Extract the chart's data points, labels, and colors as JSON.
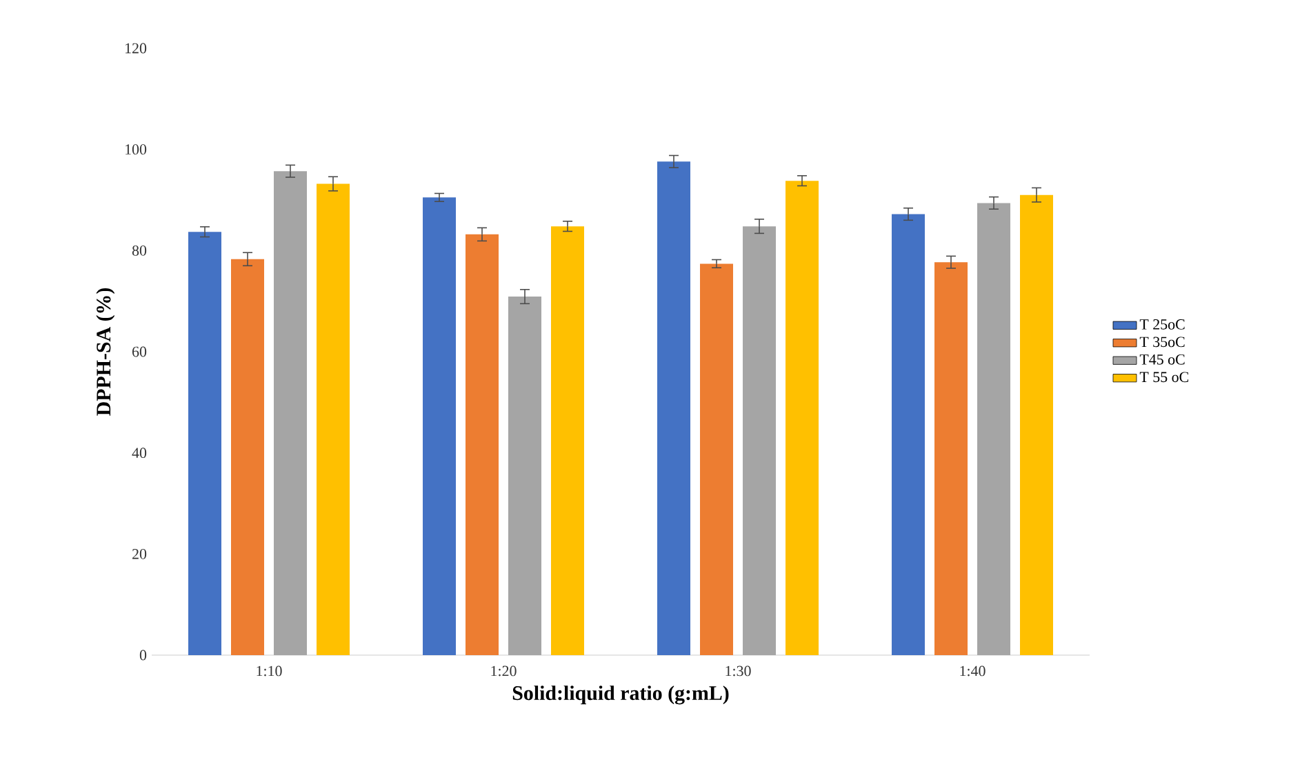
{
  "chart_data": {
    "type": "bar",
    "xlabel": "Solid:liquid ratio (g:mL)",
    "ylabel": "DPPH-SA (%)",
    "categories": [
      "1:10",
      "1:20",
      "1:30",
      "1:40"
    ],
    "series": [
      {
        "name": "T 25oC",
        "color": "#4472c4",
        "values": [
          83.7,
          90.5,
          97.6,
          87.2
        ],
        "errors": [
          1.0,
          0.8,
          1.2,
          1.2
        ]
      },
      {
        "name": "T 35oC",
        "color": "#ed7d31",
        "values": [
          78.3,
          83.2,
          77.4,
          77.7
        ],
        "errors": [
          1.3,
          1.3,
          0.8,
          1.2
        ]
      },
      {
        "name": "T45 oC",
        "color": "#a5a5a5",
        "values": [
          95.7,
          70.9,
          84.8,
          89.4
        ],
        "errors": [
          1.2,
          1.4,
          1.4,
          1.2
        ]
      },
      {
        "name": "T 55 oC",
        "color": "#ffc000",
        "values": [
          93.2,
          84.8,
          93.8,
          91.0
        ],
        "errors": [
          1.4,
          1.0,
          1.0,
          1.4
        ]
      }
    ],
    "ylim": [
      0,
      120
    ],
    "yticks": [
      0,
      20,
      40,
      60,
      80,
      100,
      120
    ],
    "legend": "right"
  }
}
